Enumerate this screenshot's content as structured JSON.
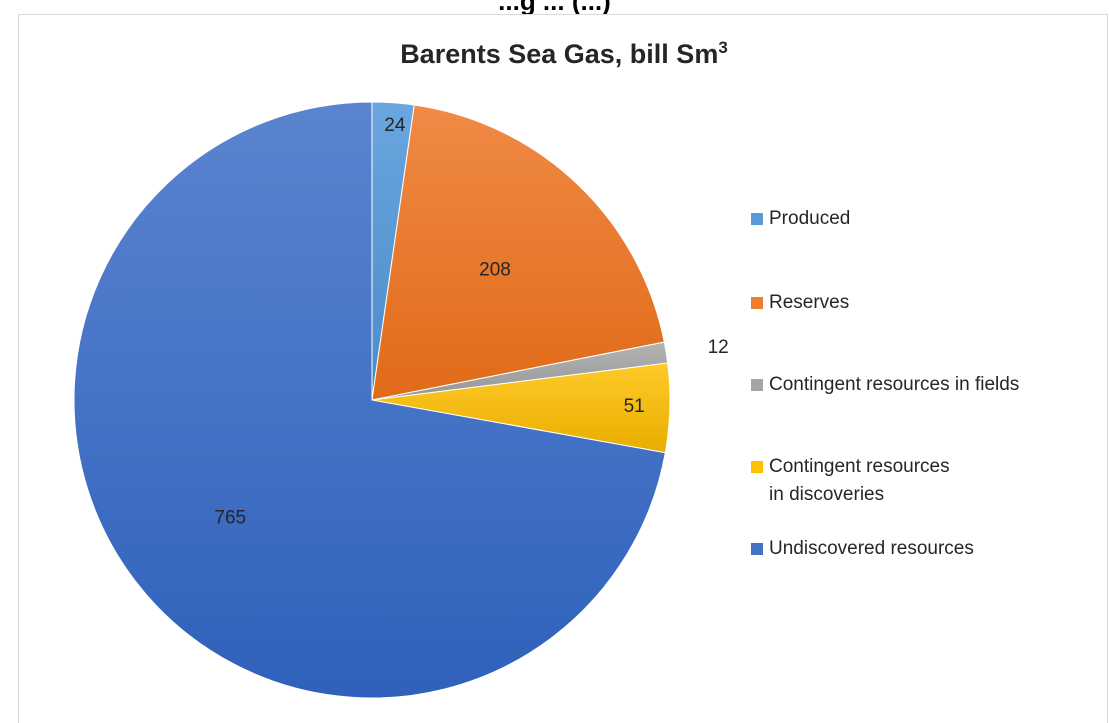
{
  "header_fragment": "...g ... (...)",
  "chart_data": {
    "type": "pie",
    "title": "Barents Sea Gas, bill Sm",
    "title_superscript": "3",
    "legend_position": "right",
    "categories": [
      "Produced",
      "Reserves",
      "Contingent resources in fields",
      "Contingent resources in discoveries",
      "Undiscovered resources"
    ],
    "values": [
      24,
      208,
      12,
      51,
      765
    ],
    "colors": [
      "#5b9bd5",
      "#ed7d31",
      "#a5a5a5",
      "#ffc000",
      "#4472c4"
    ],
    "start_angle_deg": 0,
    "direction": "clockwise"
  }
}
